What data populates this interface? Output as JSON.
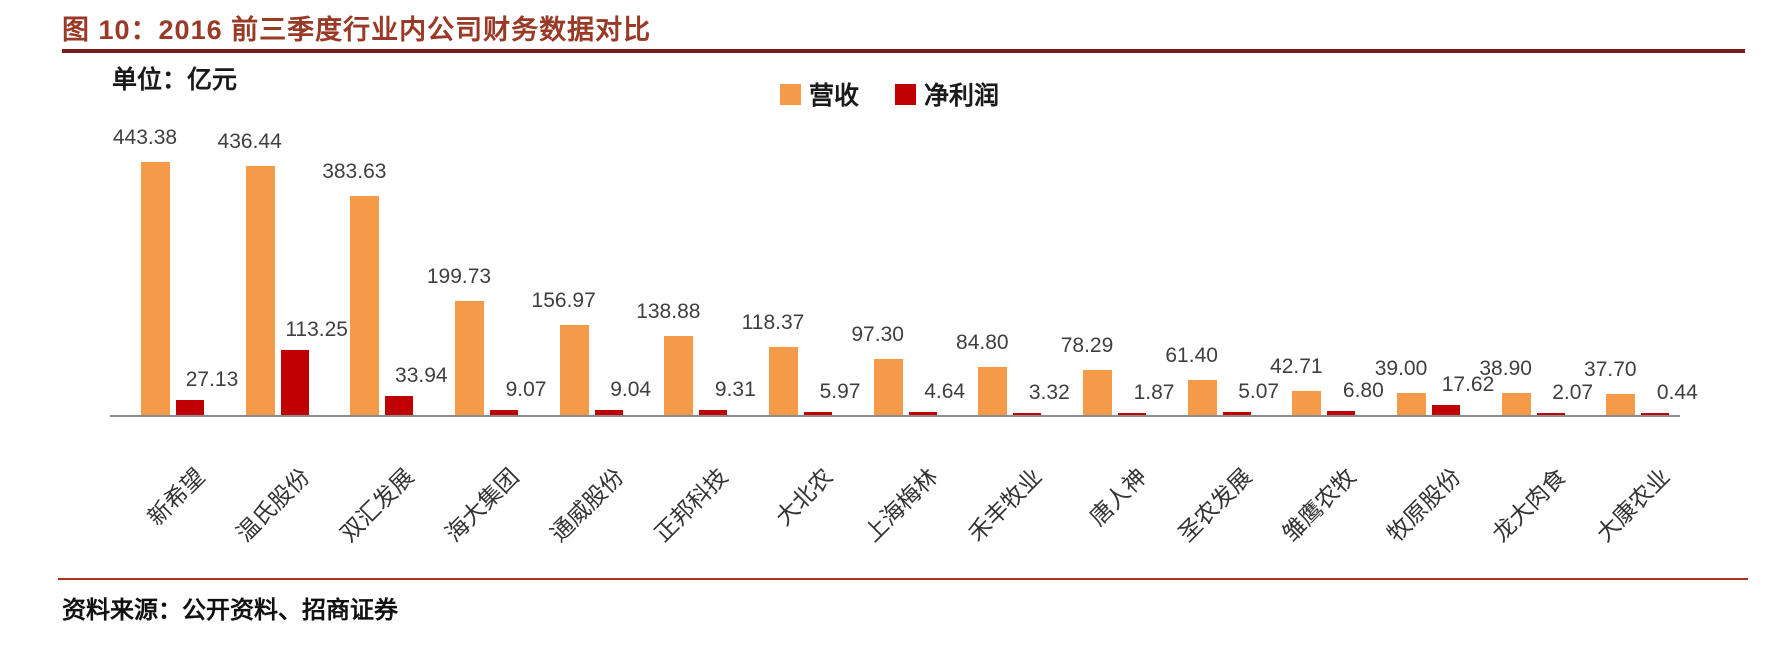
{
  "figure": {
    "title": "图 10：2016 前三季度行业内公司财务数据对比",
    "unit_label": "单位：亿元",
    "source": "资料来源：公开资料、招商证券"
  },
  "legend": {
    "revenue_label": "营收",
    "net_profit_label": "净利润"
  },
  "colors": {
    "revenue_bar": "#F59A48",
    "net_profit_bar": "#C00000",
    "title_text": "#993A26",
    "title_rule": "#7A1C1C",
    "footer_rule": "#B03024",
    "axis_line": "#8C8C8C",
    "value_label_text": "#3F3F3F"
  },
  "chart_data": {
    "type": "bar",
    "title": "2016 前三季度行业内公司财务数据对比",
    "unit": "亿元",
    "grid": false,
    "legend_position": "top-center",
    "ylim": [
      0,
      460
    ],
    "categories": [
      "新希望",
      "温氏股份",
      "双汇发展",
      "海大集团",
      "通威股份",
      "正邦科技",
      "大北农",
      "上海梅林",
      "禾丰牧业",
      "唐人神",
      "圣农发展",
      "雏鹰农牧",
      "牧原股份",
      "龙大肉食",
      "大康农业"
    ],
    "series": [
      {
        "name": "营收",
        "color": "#F59A48",
        "values": [
          443.38,
          436.44,
          383.63,
          199.73,
          156.97,
          138.88,
          118.37,
          97.3,
          84.8,
          78.29,
          61.4,
          42.71,
          39.0,
          38.9,
          37.7
        ]
      },
      {
        "name": "净利润",
        "color": "#C00000",
        "values": [
          27.13,
          113.25,
          33.94,
          9.07,
          9.04,
          9.31,
          5.97,
          4.64,
          3.32,
          1.87,
          5.07,
          6.8,
          17.62,
          2.07,
          0.44
        ]
      }
    ]
  }
}
